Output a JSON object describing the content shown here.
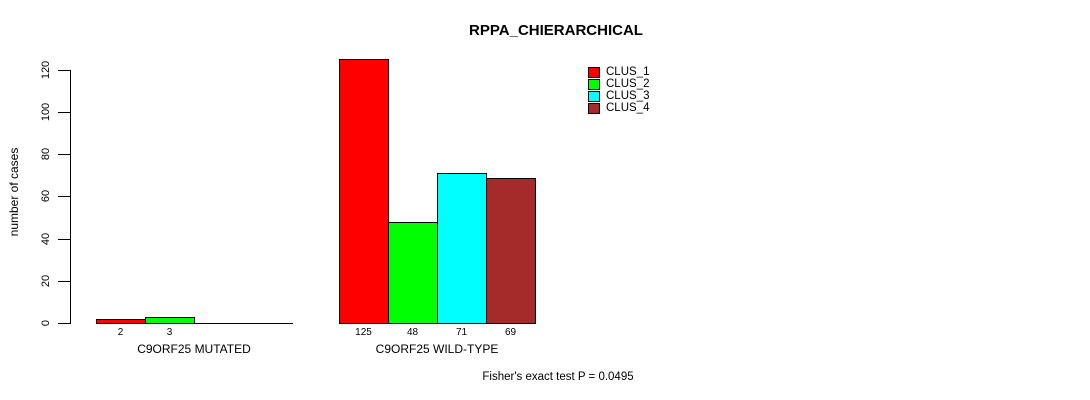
{
  "chart_data": {
    "type": "bar",
    "title": "RPPA_CHIERARCHICAL",
    "ylabel": "number of cases",
    "xlabel": "",
    "ylim": [
      0,
      120
    ],
    "yticks": [
      0,
      20,
      40,
      60,
      80,
      100,
      120
    ],
    "grid": false,
    "legend_position": "top-right",
    "categories": [
      "C9ORF25 MUTATED",
      "C9ORF25 WILD-TYPE"
    ],
    "series": [
      {
        "name": "CLUS_1",
        "color": "#ff0000",
        "values": [
          2,
          125
        ]
      },
      {
        "name": "CLUS_2",
        "color": "#00ff00",
        "values": [
          3,
          48
        ]
      },
      {
        "name": "CLUS_3",
        "color": "#00ffff",
        "values": [
          0,
          71
        ]
      },
      {
        "name": "CLUS_4",
        "color": "#a52a2a",
        "values": [
          0,
          69
        ]
      }
    ],
    "bar_value_labels": [
      [
        "2",
        "3"
      ],
      [
        "125",
        "48",
        "71",
        "69"
      ]
    ],
    "annotation": "Fisher's exact test P = 0.0495"
  }
}
